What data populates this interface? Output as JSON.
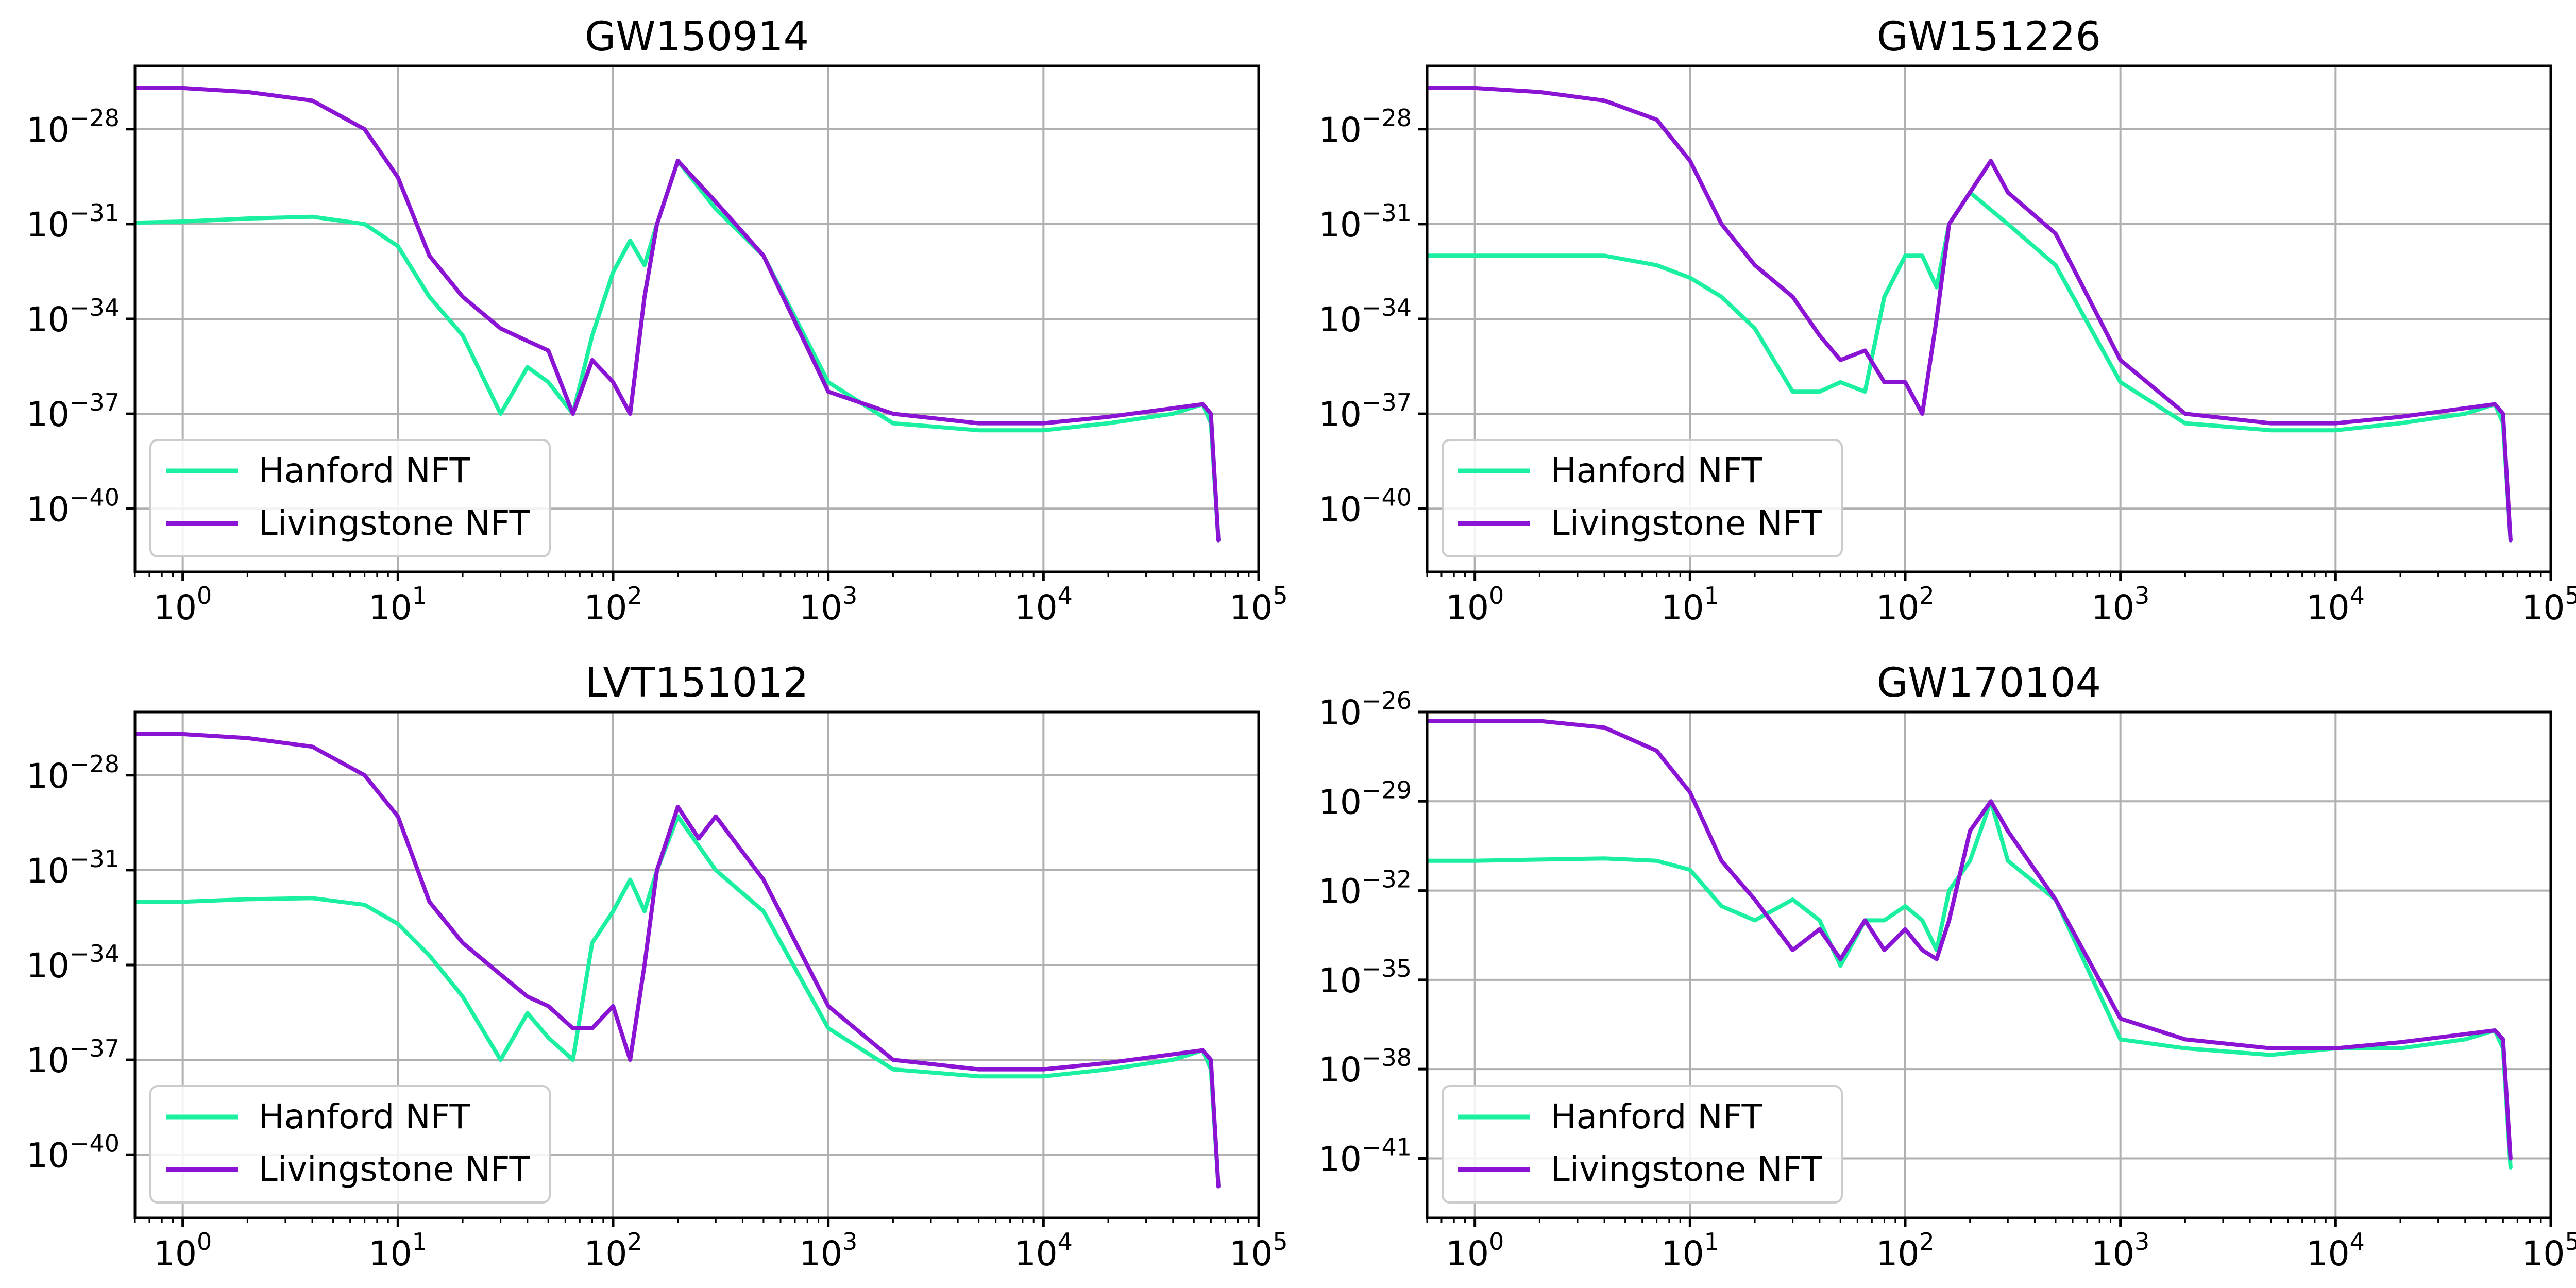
{
  "colors": {
    "hanford": "#1af0a0",
    "livingstone": "#8b14d4",
    "grid": "#b0b0b0"
  },
  "chart_data": [
    {
      "type": "line",
      "title": "GW150914",
      "xscale": "log",
      "yscale": "log",
      "xlim": [
        0.6,
        100000
      ],
      "ylim": [
        1e-42,
        1e-26
      ],
      "x_ticks": [
        {
          "exp": "0"
        },
        {
          "exp": "1"
        },
        {
          "exp": "2"
        },
        {
          "exp": "3"
        },
        {
          "exp": "4"
        },
        {
          "exp": "5"
        }
      ],
      "y_ticks": [
        {
          "exp": "−28",
          "value": 1e-28
        },
        {
          "exp": "−31",
          "value": 1e-31
        },
        {
          "exp": "−34",
          "value": 1e-34
        },
        {
          "exp": "−37",
          "value": 1e-37
        },
        {
          "exp": "−40",
          "value": 1e-40
        }
      ],
      "grid": true,
      "legend_position": "lower-left",
      "series": [
        {
          "name": "Hanford NFT",
          "color": "#1af0a0",
          "x": [
            0.6,
            1,
            2,
            4,
            7,
            10,
            14,
            20,
            30,
            40,
            50,
            65,
            80,
            100,
            120,
            140,
            160,
            200,
            300,
            500,
            1000,
            2000,
            5000,
            10000,
            20000,
            40000,
            55000,
            60000,
            65000
          ],
          "y": [
            1.1e-31,
            1.2e-31,
            1.5e-31,
            1.7e-31,
            1e-31,
            2e-32,
            5e-34,
            3e-35,
            1e-37,
            3e-36,
            1e-36,
            1e-37,
            3e-35,
            3e-33,
            3e-32,
            5e-33,
            1e-31,
            1e-29,
            3e-31,
            1e-32,
            1e-36,
            5e-38,
            3e-38,
            3e-38,
            5e-38,
            1e-37,
            2e-37,
            5e-38,
            1e-41
          ]
        },
        {
          "name": "Livingstone NFT",
          "color": "#8b14d4",
          "x": [
            0.6,
            1,
            2,
            4,
            7,
            10,
            14,
            20,
            30,
            40,
            50,
            65,
            80,
            100,
            120,
            140,
            160,
            200,
            300,
            500,
            1000,
            2000,
            5000,
            10000,
            20000,
            40000,
            55000,
            60000,
            65000
          ],
          "y": [
            2e-27,
            2e-27,
            1.5e-27,
            8e-28,
            1e-28,
            3e-30,
            1e-32,
            5e-34,
            5e-35,
            2e-35,
            1e-35,
            1e-37,
            5e-36,
            1e-36,
            1e-37,
            5e-34,
            1e-31,
            1e-29,
            5e-31,
            1e-32,
            5e-37,
            1e-37,
            5e-38,
            5e-38,
            8e-38,
            1.5e-37,
            2e-37,
            1e-37,
            1e-41
          ]
        }
      ]
    },
    {
      "type": "line",
      "title": "GW151226",
      "xscale": "log",
      "yscale": "log",
      "xlim": [
        0.6,
        100000
      ],
      "ylim": [
        1e-42,
        1e-26
      ],
      "x_ticks": [
        {
          "exp": "0"
        },
        {
          "exp": "1"
        },
        {
          "exp": "2"
        },
        {
          "exp": "3"
        },
        {
          "exp": "4"
        },
        {
          "exp": "5"
        }
      ],
      "y_ticks": [
        {
          "exp": "−28",
          "value": 1e-28
        },
        {
          "exp": "−31",
          "value": 1e-31
        },
        {
          "exp": "−34",
          "value": 1e-34
        },
        {
          "exp": "−37",
          "value": 1e-37
        },
        {
          "exp": "−40",
          "value": 1e-40
        }
      ],
      "grid": true,
      "legend_position": "lower-left",
      "series": [
        {
          "name": "Hanford NFT",
          "color": "#1af0a0",
          "x": [
            0.6,
            1,
            2,
            4,
            7,
            10,
            14,
            20,
            30,
            40,
            50,
            65,
            80,
            100,
            120,
            140,
            160,
            200,
            300,
            500,
            1000,
            2000,
            5000,
            10000,
            20000,
            40000,
            55000,
            60000,
            65000
          ],
          "y": [
            1e-32,
            1e-32,
            1e-32,
            1e-32,
            5e-33,
            2e-33,
            5e-34,
            5e-35,
            5e-37,
            5e-37,
            1e-36,
            5e-37,
            5e-34,
            1e-32,
            1e-32,
            1e-33,
            1e-31,
            1e-30,
            1e-31,
            5e-33,
            1e-36,
            5e-38,
            3e-38,
            3e-38,
            5e-38,
            1e-37,
            2e-37,
            5e-38,
            1e-41
          ]
        },
        {
          "name": "Livingstone NFT",
          "color": "#8b14d4",
          "x": [
            0.6,
            1,
            2,
            4,
            7,
            10,
            14,
            20,
            30,
            40,
            50,
            65,
            80,
            100,
            120,
            140,
            160,
            200,
            250,
            300,
            500,
            1000,
            2000,
            5000,
            10000,
            20000,
            40000,
            55000,
            60000,
            65000
          ],
          "y": [
            2e-27,
            2e-27,
            1.5e-27,
            8e-28,
            2e-28,
            1e-29,
            1e-31,
            5e-33,
            5e-34,
            3e-35,
            5e-36,
            1e-35,
            1e-36,
            1e-36,
            1e-37,
            1e-34,
            1e-31,
            1e-30,
            1e-29,
            1e-30,
            5e-32,
            5e-36,
            1e-37,
            5e-38,
            5e-38,
            8e-38,
            1.5e-37,
            2e-37,
            1e-37,
            1e-41
          ]
        }
      ]
    },
    {
      "type": "line",
      "title": "LVT151012",
      "xscale": "log",
      "yscale": "log",
      "xlim": [
        0.6,
        100000
      ],
      "ylim": [
        1e-42,
        1e-26
      ],
      "x_ticks": [
        {
          "exp": "0"
        },
        {
          "exp": "1"
        },
        {
          "exp": "2"
        },
        {
          "exp": "3"
        },
        {
          "exp": "4"
        },
        {
          "exp": "5"
        }
      ],
      "y_ticks": [
        {
          "exp": "−28",
          "value": 1e-28
        },
        {
          "exp": "−31",
          "value": 1e-31
        },
        {
          "exp": "−34",
          "value": 1e-34
        },
        {
          "exp": "−37",
          "value": 1e-37
        },
        {
          "exp": "−40",
          "value": 1e-40
        }
      ],
      "grid": true,
      "legend_position": "lower-left",
      "series": [
        {
          "name": "Hanford NFT",
          "color": "#1af0a0",
          "x": [
            0.6,
            1,
            2,
            4,
            7,
            10,
            14,
            20,
            30,
            40,
            50,
            65,
            80,
            100,
            120,
            140,
            160,
            200,
            300,
            500,
            1000,
            2000,
            5000,
            10000,
            20000,
            40000,
            55000,
            60000,
            65000
          ],
          "y": [
            1e-32,
            1e-32,
            1.2e-32,
            1.3e-32,
            8e-33,
            2e-33,
            2e-34,
            1e-35,
            1e-37,
            3e-36,
            5e-37,
            1e-37,
            5e-34,
            5e-33,
            5e-32,
            5e-33,
            1e-31,
            5e-30,
            1e-31,
            5e-33,
            1e-36,
            5e-38,
            3e-38,
            3e-38,
            5e-38,
            1e-37,
            2e-37,
            5e-38,
            1e-41
          ]
        },
        {
          "name": "Livingstone NFT",
          "color": "#8b14d4",
          "x": [
            0.6,
            1,
            2,
            4,
            7,
            10,
            14,
            20,
            30,
            40,
            50,
            65,
            80,
            100,
            120,
            140,
            160,
            200,
            250,
            300,
            500,
            1000,
            2000,
            5000,
            10000,
            20000,
            40000,
            55000,
            60000,
            65000
          ],
          "y": [
            2e-27,
            2e-27,
            1.5e-27,
            8e-28,
            1e-28,
            5e-30,
            1e-32,
            5e-34,
            5e-35,
            1e-35,
            5e-36,
            1e-36,
            1e-36,
            5e-36,
            1e-37,
            1e-34,
            1e-31,
            1e-29,
            1e-30,
            5e-30,
            5e-32,
            5e-36,
            1e-37,
            5e-38,
            5e-38,
            8e-38,
            1.5e-37,
            2e-37,
            1e-37,
            1e-41
          ]
        }
      ]
    },
    {
      "type": "line",
      "title": "GW170104",
      "xscale": "log",
      "yscale": "log",
      "xlim": [
        0.6,
        100000
      ],
      "ylim": [
        1e-43,
        1e-26
      ],
      "x_ticks": [
        {
          "exp": "0"
        },
        {
          "exp": "1"
        },
        {
          "exp": "2"
        },
        {
          "exp": "3"
        },
        {
          "exp": "4"
        },
        {
          "exp": "5"
        }
      ],
      "y_ticks": [
        {
          "exp": "−26",
          "value": 1e-26
        },
        {
          "exp": "−29",
          "value": 1e-29
        },
        {
          "exp": "−32",
          "value": 1e-32
        },
        {
          "exp": "−35",
          "value": 1e-35
        },
        {
          "exp": "−38",
          "value": 1e-38
        },
        {
          "exp": "−41",
          "value": 1e-41
        }
      ],
      "grid": true,
      "legend_position": "lower-left",
      "series": [
        {
          "name": "Hanford NFT",
          "color": "#1af0a0",
          "x": [
            0.6,
            1,
            2,
            4,
            7,
            10,
            14,
            20,
            30,
            40,
            50,
            65,
            80,
            100,
            120,
            140,
            160,
            200,
            250,
            300,
            500,
            1000,
            2000,
            5000,
            10000,
            20000,
            40000,
            55000,
            60000,
            65000
          ],
          "y": [
            1e-31,
            1e-31,
            1.1e-31,
            1.2e-31,
            1e-31,
            5e-32,
            3e-33,
            1e-33,
            5e-33,
            1e-33,
            3e-35,
            1e-33,
            1e-33,
            3e-33,
            1e-33,
            1e-34,
            1e-32,
            1e-31,
            1e-29,
            1e-31,
            5e-33,
            1e-37,
            5e-38,
            3e-38,
            5e-38,
            5e-38,
            1e-37,
            2e-37,
            5e-38,
            5e-42
          ]
        },
        {
          "name": "Livingstone NFT",
          "color": "#8b14d4",
          "x": [
            0.6,
            1,
            2,
            4,
            7,
            10,
            14,
            20,
            30,
            40,
            50,
            65,
            80,
            100,
            120,
            140,
            160,
            200,
            250,
            300,
            500,
            1000,
            2000,
            5000,
            10000,
            20000,
            40000,
            55000,
            60000,
            65000
          ],
          "y": [
            5e-27,
            5e-27,
            5e-27,
            3e-27,
            5e-28,
            2e-29,
            1e-31,
            5e-33,
            1e-34,
            5e-34,
            5e-35,
            1e-33,
            1e-34,
            5e-34,
            1e-34,
            5e-35,
            1e-33,
            1e-30,
            1e-29,
            1e-30,
            5e-33,
            5e-37,
            1e-37,
            5e-38,
            5e-38,
            8e-38,
            1.5e-37,
            2e-37,
            1e-37,
            1e-41
          ]
        }
      ]
    }
  ]
}
